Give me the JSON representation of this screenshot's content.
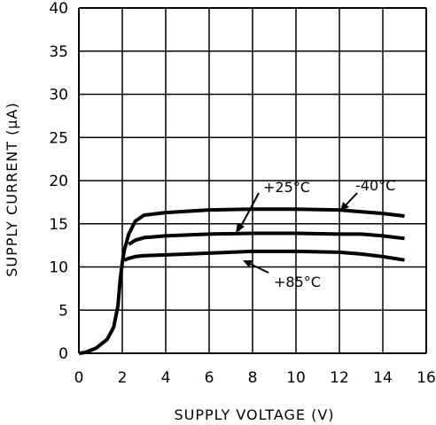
{
  "chart_data": {
    "type": "line",
    "xlabel": "SUPPLY VOLTAGE (V)",
    "ylabel": "SUPPLY CURRENT (μA)",
    "xlim": [
      0,
      16
    ],
    "ylim": [
      0,
      40
    ],
    "xticks": [
      0,
      2,
      4,
      6,
      8,
      10,
      12,
      14,
      16
    ],
    "yticks": [
      0,
      5,
      10,
      15,
      20,
      25,
      30,
      35,
      40
    ],
    "grid": true,
    "series": [
      {
        "name": "+25°C",
        "x": [
          0,
          0.3,
          0.8,
          1.3,
          1.6,
          1.8,
          1.9,
          2.0,
          2.1,
          2.3,
          2.6,
          3.0,
          4,
          6,
          8,
          10,
          12,
          13,
          14,
          15
        ],
        "y": [
          0,
          0.1,
          0.6,
          1.6,
          3.0,
          5.5,
          8.5,
          10.5,
          12.0,
          13.8,
          15.3,
          16.0,
          16.3,
          16.6,
          16.7,
          16.7,
          16.6,
          16.4,
          16.2,
          15.9
        ]
      },
      {
        "name": "-40°C",
        "x": [
          2.3,
          2.6,
          3.0,
          4,
          6,
          8,
          10,
          12,
          13,
          14,
          15
        ],
        "y": [
          12.6,
          13.1,
          13.4,
          13.6,
          13.8,
          13.9,
          13.9,
          13.8,
          13.8,
          13.6,
          13.3
        ]
      },
      {
        "name": "+85°C",
        "x": [
          2.1,
          2.3,
          2.6,
          3.0,
          4,
          6,
          8,
          10,
          12,
          13,
          14,
          15
        ],
        "y": [
          10.8,
          11.0,
          11.2,
          11.3,
          11.4,
          11.6,
          11.8,
          11.8,
          11.7,
          11.5,
          11.2,
          10.8
        ]
      }
    ],
    "annotations": [
      "+25°C",
      "-40°C",
      "+85°C"
    ]
  }
}
